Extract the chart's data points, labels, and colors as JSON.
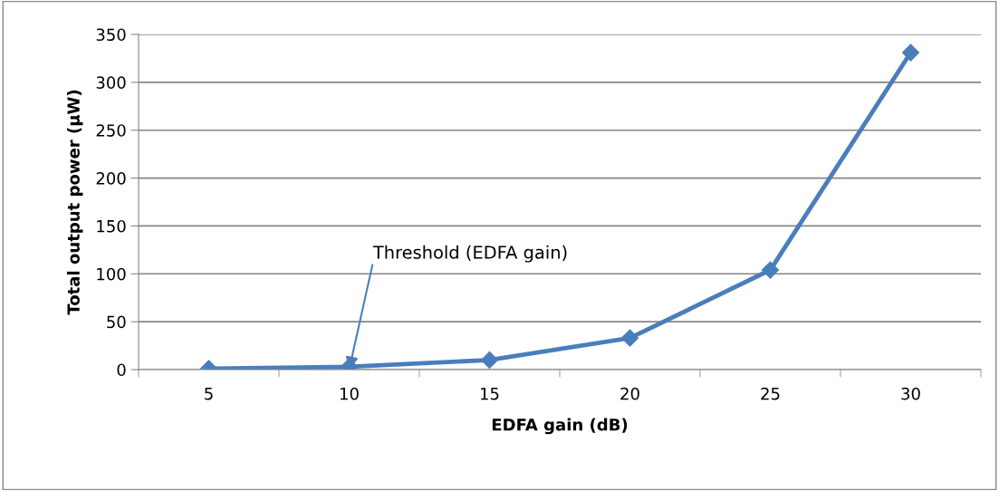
{
  "chart_data": {
    "type": "line",
    "xlabel": "EDFA gain (dB)",
    "ylabel": "Total output power (μW)",
    "categories": [
      "5",
      "10",
      "15",
      "20",
      "25",
      "30"
    ],
    "series": [
      {
        "color": "#4a7ebb",
        "values": [
          1,
          3,
          10,
          33,
          104,
          331
        ]
      }
    ],
    "ylim": [
      0,
      350
    ],
    "yticks": [
      0,
      50,
      100,
      150,
      200,
      250,
      300,
      350
    ],
    "grid": "y",
    "marker": "diamond",
    "line_style": "solid",
    "annotations": [
      {
        "text": "Threshold (EDFA gain)",
        "x": "10",
        "y": 0
      }
    ]
  }
}
